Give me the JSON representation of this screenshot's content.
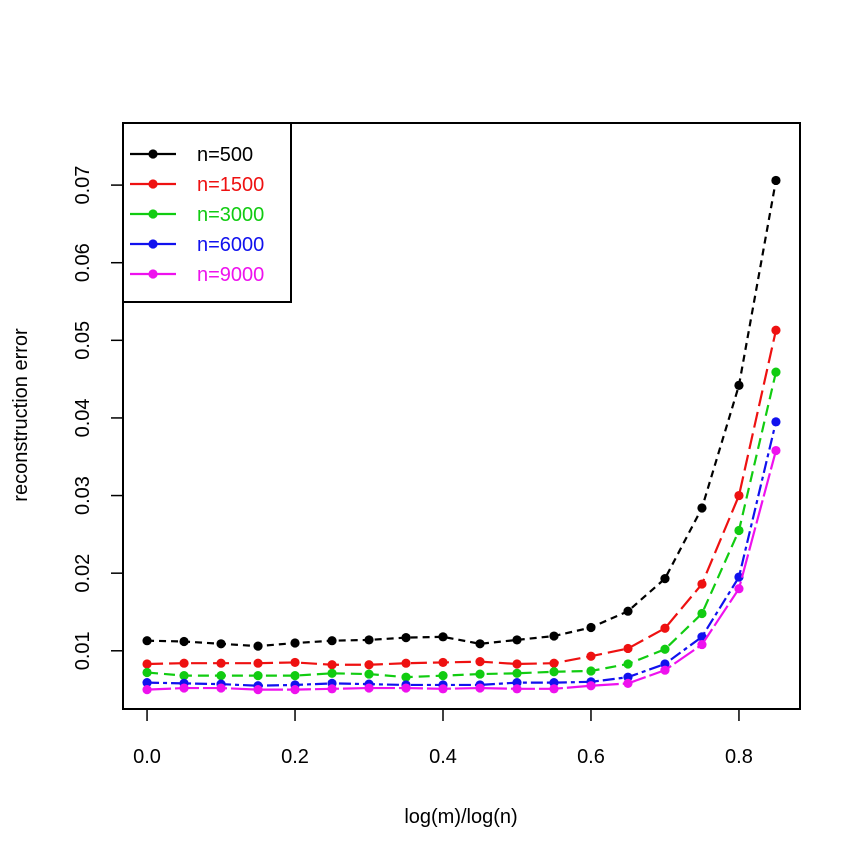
{
  "chart_data": {
    "type": "line",
    "title": "",
    "xlabel": "log(m)/log(n)",
    "ylabel": "reconstruction error",
    "xlim": [
      -0.0325,
      0.8825
    ],
    "ylim": [
      0.0025,
      0.078
    ],
    "xticks": [
      0.0,
      0.2,
      0.4,
      0.6,
      0.8
    ],
    "xtick_labels": [
      "0.0",
      "0.2",
      "0.4",
      "0.6",
      "0.8"
    ],
    "yticks": [
      0.01,
      0.02,
      0.03,
      0.04,
      0.05,
      0.06,
      0.07
    ],
    "ytick_labels": [
      "0.01",
      "0.02",
      "0.03",
      "0.04",
      "0.05",
      "0.06",
      "0.07"
    ],
    "legend_position": "top-left",
    "x": [
      0.0,
      0.05,
      0.1,
      0.15,
      0.2,
      0.25,
      0.3,
      0.35,
      0.4,
      0.45,
      0.5,
      0.55,
      0.6,
      0.65,
      0.7,
      0.75,
      0.8,
      0.85
    ],
    "series": [
      {
        "name": "n=500",
        "color": "#000000",
        "dash": "7 5",
        "values": [
          0.0113,
          0.0112,
          0.0109,
          0.0106,
          0.011,
          0.0113,
          0.0114,
          0.0117,
          0.0118,
          0.0109,
          0.0114,
          0.0119,
          0.013,
          0.0151,
          0.0193,
          0.0284,
          0.0442,
          0.0706
        ]
      },
      {
        "name": "n=1500",
        "color": "#ee1111",
        "dash": "16 6",
        "values": [
          0.0083,
          0.0084,
          0.0084,
          0.0084,
          0.0085,
          0.0082,
          0.0082,
          0.0084,
          0.0085,
          0.0086,
          0.0083,
          0.0084,
          0.0093,
          0.0103,
          0.0129,
          0.0186,
          0.03,
          0.0513
        ]
      },
      {
        "name": "n=3000",
        "color": "#11cc11",
        "dash": "11 6",
        "values": [
          0.0072,
          0.0068,
          0.0068,
          0.0068,
          0.0068,
          0.0071,
          0.007,
          0.0066,
          0.0068,
          0.007,
          0.0071,
          0.0073,
          0.0074,
          0.0083,
          0.0102,
          0.0148,
          0.0255,
          0.0459
        ]
      },
      {
        "name": "n=6000",
        "color": "#1111ee",
        "dash": "12 4 4 4",
        "values": [
          0.0059,
          0.0058,
          0.0057,
          0.0055,
          0.0056,
          0.0058,
          0.0057,
          0.0056,
          0.0056,
          0.0056,
          0.0059,
          0.0059,
          0.006,
          0.0066,
          0.0083,
          0.0118,
          0.0195,
          0.0395
        ]
      },
      {
        "name": "n=9000",
        "color": "#ee11ee",
        "dash": "24 4",
        "values": [
          0.005,
          0.0052,
          0.0052,
          0.005,
          0.005,
          0.0051,
          0.0052,
          0.0052,
          0.0051,
          0.0052,
          0.0051,
          0.0051,
          0.0055,
          0.0058,
          0.0075,
          0.0108,
          0.018,
          0.0358
        ]
      }
    ]
  }
}
